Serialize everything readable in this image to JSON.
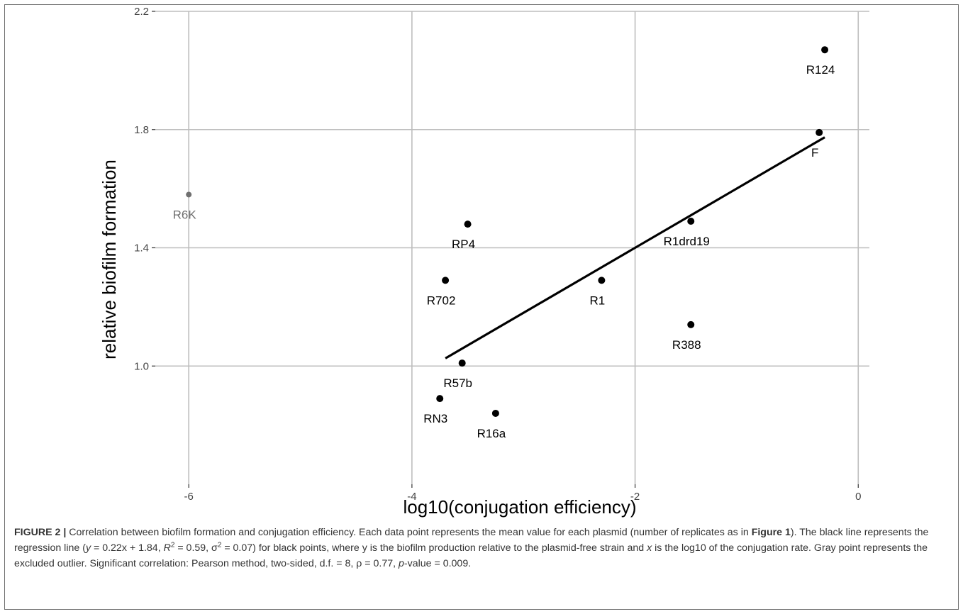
{
  "chart_data": {
    "type": "scatter",
    "title": "",
    "xlabel": "log10(conjugation efficiency)",
    "ylabel": "relative biofilm formation",
    "xlim": [
      -6.3,
      0.1
    ],
    "ylim": [
      0.6,
      2.2
    ],
    "x_ticks": [
      -6,
      -4,
      -2,
      0
    ],
    "x_tick_labels": [
      "-6",
      "-4",
      "-2",
      "0"
    ],
    "y_ticks": [
      1.0,
      1.4,
      1.8,
      2.2
    ],
    "y_tick_labels": [
      "1.0",
      "1.4",
      "1.8",
      "2.2"
    ],
    "grid": true,
    "points": [
      {
        "label": "R124",
        "x": -0.3,
        "y": 2.07,
        "group": "included"
      },
      {
        "label": "F",
        "x": -0.35,
        "y": 1.79,
        "group": "included"
      },
      {
        "label": "R1drd19",
        "x": -1.5,
        "y": 1.49,
        "group": "included"
      },
      {
        "label": "R388",
        "x": -1.5,
        "y": 1.14,
        "group": "included"
      },
      {
        "label": "R1",
        "x": -2.3,
        "y": 1.29,
        "group": "included"
      },
      {
        "label": "RP4",
        "x": -3.5,
        "y": 1.48,
        "group": "included"
      },
      {
        "label": "R702",
        "x": -3.7,
        "y": 1.29,
        "group": "included"
      },
      {
        "label": "R57b",
        "x": -3.55,
        "y": 1.01,
        "group": "included"
      },
      {
        "label": "RN3",
        "x": -3.75,
        "y": 0.89,
        "group": "included"
      },
      {
        "label": "R16a",
        "x": -3.25,
        "y": 0.84,
        "group": "included"
      },
      {
        "label": "R6K",
        "x": -6.0,
        "y": 1.58,
        "group": "outlier"
      }
    ],
    "regression_line": {
      "slope": 0.22,
      "intercept": 1.84,
      "x_range": [
        -3.7,
        -0.3
      ]
    },
    "colors": {
      "included": "#000000",
      "outlier": "#707070",
      "grid": "#bdbdbd",
      "line": "#000000"
    }
  },
  "caption": {
    "figure_label": "FIGURE 2 |",
    "text_1": " Correlation between biofilm formation and conjugation efficiency. Each data point represents the mean value for each plasmid (number of replicates as in ",
    "figure_ref": "Figure 1",
    "text_2": "). The black line represents the regression line (",
    "eq_y": "y",
    "eq_mid": " = 0.22x + 1.84, ",
    "eq_r": "R",
    "eq_r_sup": "2",
    "eq_after_r": " = 0.59, σ",
    "eq_sigma_sup": "2",
    "eq_after_sigma": " = 0.07) for black points, where y is the biofilm production relative to the plasmid-free strain and ",
    "eq_x": "x",
    "text_3": " is the log10 of the conjugation rate. Gray point represents the excluded outlier. Significant correlation: Pearson method, two-sided, d.f. = 8, ρ = 0.77, ",
    "p_italic": "p",
    "text_4": "-value = 0.009."
  }
}
